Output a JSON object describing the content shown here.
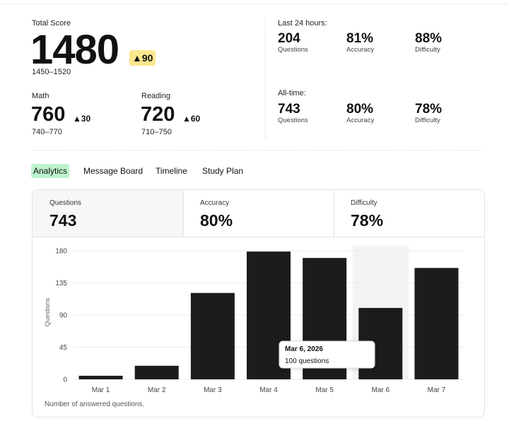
{
  "summary": {
    "total": {
      "label": "Total Score",
      "score": "1480",
      "delta": "▲90",
      "range": "1450–1520"
    },
    "math": {
      "label": "Math",
      "score": "760",
      "delta": "▲30",
      "range": "740–770"
    },
    "reading": {
      "label": "Reading",
      "score": "720",
      "delta": "▲60",
      "range": "710–750"
    },
    "last24": {
      "label": "Last 24 hours:",
      "stats": [
        {
          "value": "204",
          "label": "Questions"
        },
        {
          "value": "81%",
          "label": "Accuracy"
        },
        {
          "value": "88%",
          "label": "Difficulty"
        }
      ]
    },
    "alltime": {
      "label": "All-time:",
      "stats": [
        {
          "value": "743",
          "label": "Questions"
        },
        {
          "value": "80%",
          "label": "Accuracy"
        },
        {
          "value": "78%",
          "label": "Difficulty"
        }
      ]
    }
  },
  "tabs": [
    "Analytics",
    "Message Board",
    "Timeline",
    "Study Plan"
  ],
  "cards": [
    {
      "label": "Questions",
      "value": "743"
    },
    {
      "label": "Accuracy",
      "value": "80%"
    },
    {
      "label": "Difficulty",
      "value": "78%"
    }
  ],
  "chart_data": {
    "type": "bar",
    "y_label": "Questions",
    "categories": [
      "Mar 1",
      "Mar 2",
      "Mar 3",
      "Mar 4",
      "Mar 5",
      "Mar 6",
      "Mar 7"
    ],
    "values": [
      5,
      19,
      121,
      179,
      170,
      100,
      156
    ],
    "color": "#1c1c1c",
    "ylim": [
      0,
      187
    ],
    "yticks": [
      0,
      45,
      90,
      135,
      180
    ],
    "grid": true,
    "tooltip": {
      "title": "Mar 6, 2026",
      "text": "100 questions"
    },
    "footnote": "Number of answered questions."
  }
}
